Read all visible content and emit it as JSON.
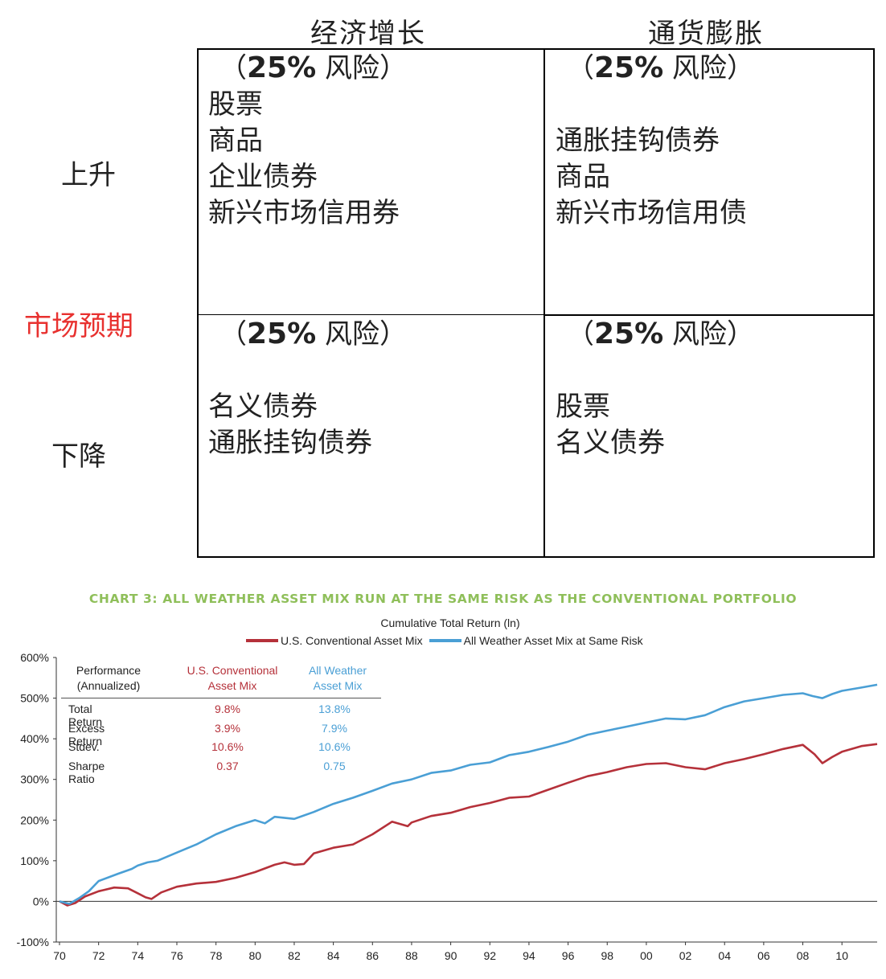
{
  "matrix": {
    "col_headers": [
      "经济增长",
      "通货膨胀"
    ],
    "row_labels": [
      "上升",
      "下降"
    ],
    "axis_label": "市场预期",
    "cells": [
      {
        "risk_pct": "25%",
        "risk_word": "风险",
        "items": [
          "股票",
          "商品",
          "企业债券",
          "新兴市场信用券"
        ]
      },
      {
        "risk_pct": "25%",
        "risk_word": "风险",
        "items": [
          "",
          "通胀挂钩债券",
          "商品",
          "新兴市场信用债"
        ]
      },
      {
        "risk_pct": "25%",
        "risk_word": "风险",
        "items": [
          "",
          "名义债券",
          "通胀挂钩债券"
        ]
      },
      {
        "risk_pct": "25%",
        "risk_word": "风险",
        "items": [
          "",
          "股票",
          "名义债券"
        ]
      }
    ]
  },
  "chart_data": {
    "type": "line",
    "title": "CHART 3: ALL WEATHER ASSET MIX RUN AT THE SAME RISK AS THE CONVENTIONAL PORTFOLIO",
    "subtitle": "Cumulative Total Return (ln)",
    "ylim": [
      -100,
      600
    ],
    "y_ticks": [
      "-100%",
      "0%",
      "100%",
      "200%",
      "300%",
      "400%",
      "500%",
      "600%"
    ],
    "x_ticks": [
      "70",
      "72",
      "74",
      "76",
      "78",
      "80",
      "82",
      "84",
      "86",
      "88",
      "90",
      "92",
      "94",
      "96",
      "98",
      "00",
      "02",
      "04",
      "06",
      "08",
      "10"
    ],
    "x_range": [
      1970,
      2011.8
    ],
    "grid": false,
    "legend_position": "top-center",
    "series": [
      {
        "name": "U.S. Conventional Asset Mix",
        "color": "#b5313a",
        "points": [
          [
            1970,
            0
          ],
          [
            1970.4,
            -10
          ],
          [
            1970.8,
            -4
          ],
          [
            1971.3,
            12
          ],
          [
            1972,
            25
          ],
          [
            1972.8,
            34
          ],
          [
            1973.5,
            32
          ],
          [
            1974,
            20
          ],
          [
            1974.4,
            10
          ],
          [
            1974.7,
            6
          ],
          [
            1975.2,
            22
          ],
          [
            1976,
            36
          ],
          [
            1977,
            44
          ],
          [
            1978,
            48
          ],
          [
            1979,
            58
          ],
          [
            1980,
            72
          ],
          [
            1981,
            90
          ],
          [
            1981.5,
            96
          ],
          [
            1982,
            90
          ],
          [
            1982.5,
            92
          ],
          [
            1983,
            118
          ],
          [
            1984,
            132
          ],
          [
            1985,
            140
          ],
          [
            1986,
            165
          ],
          [
            1987,
            196
          ],
          [
            1987.8,
            185
          ],
          [
            1988,
            194
          ],
          [
            1989,
            210
          ],
          [
            1990,
            218
          ],
          [
            1991,
            232
          ],
          [
            1992,
            242
          ],
          [
            1993,
            255
          ],
          [
            1994,
            258
          ],
          [
            1995,
            275
          ],
          [
            1996,
            292
          ],
          [
            1997,
            308
          ],
          [
            1998,
            318
          ],
          [
            1999,
            330
          ],
          [
            2000,
            338
          ],
          [
            2001,
            340
          ],
          [
            2002,
            330
          ],
          [
            2003,
            325
          ],
          [
            2004,
            340
          ],
          [
            2005,
            350
          ],
          [
            2006,
            362
          ],
          [
            2007,
            375
          ],
          [
            2008,
            385
          ],
          [
            2008.6,
            362
          ],
          [
            2009,
            340
          ],
          [
            2009.5,
            355
          ],
          [
            2010,
            368
          ],
          [
            2011,
            382
          ],
          [
            2011.8,
            387
          ]
        ]
      },
      {
        "name": "All Weather Asset Mix at Same Risk",
        "color": "#4a9fd5",
        "points": [
          [
            1970,
            0
          ],
          [
            1970.5,
            -6
          ],
          [
            1971,
            8
          ],
          [
            1971.5,
            25
          ],
          [
            1972,
            50
          ],
          [
            1973,
            68
          ],
          [
            1973.7,
            80
          ],
          [
            1974,
            88
          ],
          [
            1974.5,
            96
          ],
          [
            1975,
            100
          ],
          [
            1976,
            120
          ],
          [
            1977,
            140
          ],
          [
            1978,
            165
          ],
          [
            1979,
            185
          ],
          [
            1980,
            200
          ],
          [
            1980.5,
            192
          ],
          [
            1981,
            208
          ],
          [
            1982,
            203
          ],
          [
            1983,
            220
          ],
          [
            1984,
            240
          ],
          [
            1985,
            255
          ],
          [
            1986,
            272
          ],
          [
            1987,
            290
          ],
          [
            1988,
            300
          ],
          [
            1989,
            316
          ],
          [
            1990,
            322
          ],
          [
            1991,
            336
          ],
          [
            1992,
            342
          ],
          [
            1993,
            360
          ],
          [
            1994,
            368
          ],
          [
            1995,
            380
          ],
          [
            1996,
            393
          ],
          [
            1997,
            410
          ],
          [
            1998,
            420
          ],
          [
            1999,
            430
          ],
          [
            2000,
            440
          ],
          [
            2001,
            450
          ],
          [
            2002,
            448
          ],
          [
            2003,
            458
          ],
          [
            2004,
            478
          ],
          [
            2005,
            492
          ],
          [
            2006,
            500
          ],
          [
            2007,
            508
          ],
          [
            2008,
            512
          ],
          [
            2008.5,
            505
          ],
          [
            2009,
            500
          ],
          [
            2009.5,
            510
          ],
          [
            2010,
            518
          ],
          [
            2011,
            526
          ],
          [
            2011.8,
            533
          ]
        ]
      }
    ],
    "stats_table": {
      "headers": [
        "Performance\n(Annualized)",
        "U.S. Conventional\nAsset Mix",
        "All Weather\nAsset Mix"
      ],
      "rows": [
        {
          "label": "Total Return",
          "conv": "9.8%",
          "aw": "13.8%"
        },
        {
          "label": "Excess Return",
          "conv": "3.9%",
          "aw": "7.9%"
        },
        {
          "label": "Stdev.",
          "conv": "10.6%",
          "aw": "10.6%"
        },
        {
          "label": "Sharpe Ratio",
          "conv": "0.37",
          "aw": "0.75"
        }
      ]
    }
  }
}
